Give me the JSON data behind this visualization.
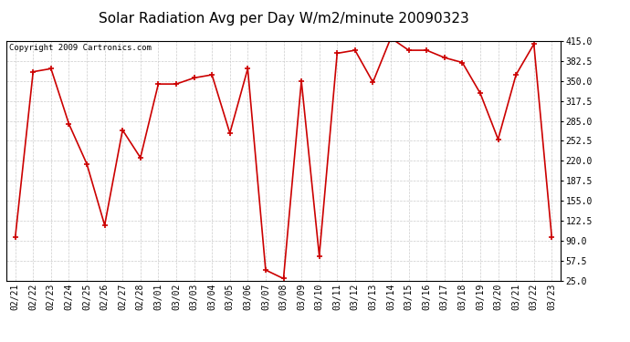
{
  "title": "Solar Radiation Avg per Day W/m2/minute 20090323",
  "copyright": "Copyright 2009 Cartronics.com",
  "dates": [
    "02/21",
    "02/22",
    "02/23",
    "02/24",
    "02/25",
    "02/26",
    "02/27",
    "02/28",
    "03/01",
    "03/02",
    "03/03",
    "03/04",
    "03/05",
    "03/06",
    "03/07",
    "03/08",
    "03/09",
    "03/10",
    "03/11",
    "03/12",
    "03/13",
    "03/14",
    "03/15",
    "03/16",
    "03/17",
    "03/18",
    "03/19",
    "03/20",
    "03/21",
    "03/22",
    "03/23"
  ],
  "values": [
    95,
    365,
    370,
    280,
    215,
    115,
    270,
    225,
    345,
    345,
    355,
    360,
    265,
    370,
    42,
    28,
    350,
    65,
    395,
    400,
    348,
    420,
    400,
    400,
    388,
    380,
    330,
    255,
    360,
    410,
    95
  ],
  "line_color": "#cc0000",
  "marker_color": "#cc0000",
  "bg_color": "#ffffff",
  "grid_color": "#cccccc",
  "ylim": [
    25.0,
    415.0
  ],
  "yticks": [
    25.0,
    57.5,
    90.0,
    122.5,
    155.0,
    187.5,
    220.0,
    252.5,
    285.0,
    317.5,
    350.0,
    382.5,
    415.0
  ],
  "title_fontsize": 11,
  "copyright_fontsize": 6.5,
  "tick_fontsize": 7,
  "border_color": "#000000"
}
